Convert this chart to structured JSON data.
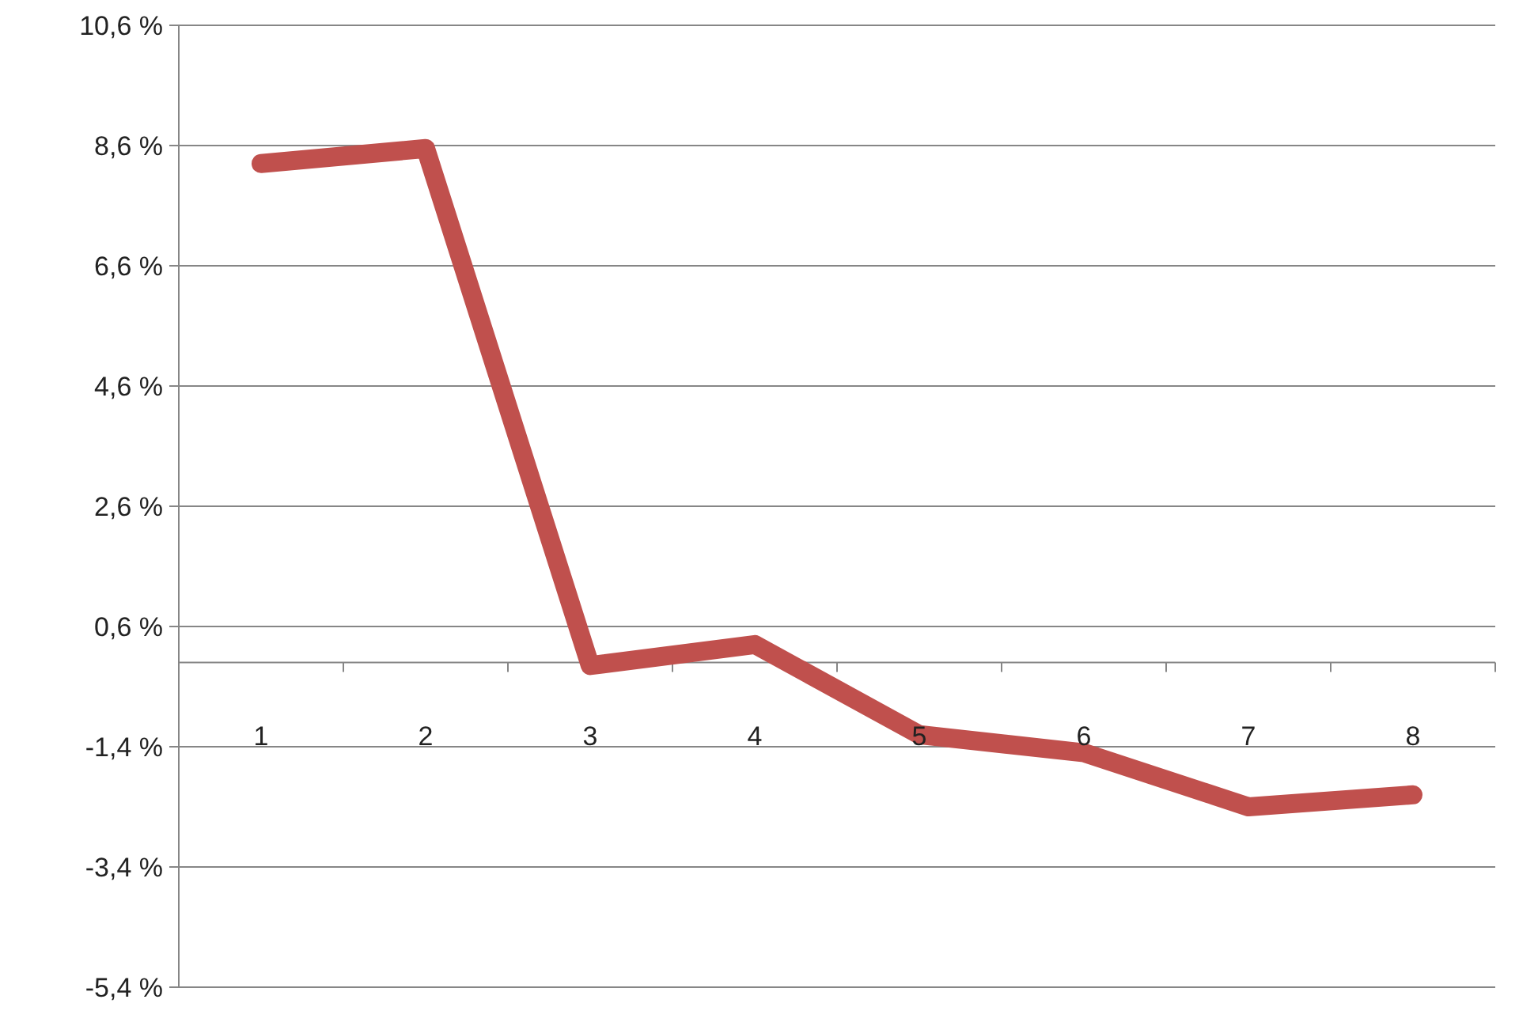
{
  "chart_data": {
    "type": "line",
    "categories": [
      "1",
      "2",
      "3",
      "4",
      "5",
      "6",
      "7",
      "8"
    ],
    "series": [
      {
        "color": "#c0504d",
        "values": [
          8.3,
          8.55,
          -0.05,
          0.3,
          -1.2,
          -1.5,
          -2.4,
          -2.2
        ]
      }
    ],
    "ylim": [
      -5.4,
      10.6
    ],
    "yticks": [
      {
        "value": -5.4,
        "label": "-5,4 %"
      },
      {
        "value": -3.4,
        "label": "-3,4 %"
      },
      {
        "value": -1.4,
        "label": "-1,4 %"
      },
      {
        "value": 0.6,
        "label": "0,6 %"
      },
      {
        "value": 2.6,
        "label": "2,6 %"
      },
      {
        "value": 4.6,
        "label": "4,6 %"
      },
      {
        "value": 6.6,
        "label": "6,6 %"
      },
      {
        "value": 8.6,
        "label": "8,6 %"
      },
      {
        "value": 10.6,
        "label": "10,6 %"
      }
    ],
    "grid": "y",
    "marker": "none",
    "line_style": "solid"
  }
}
